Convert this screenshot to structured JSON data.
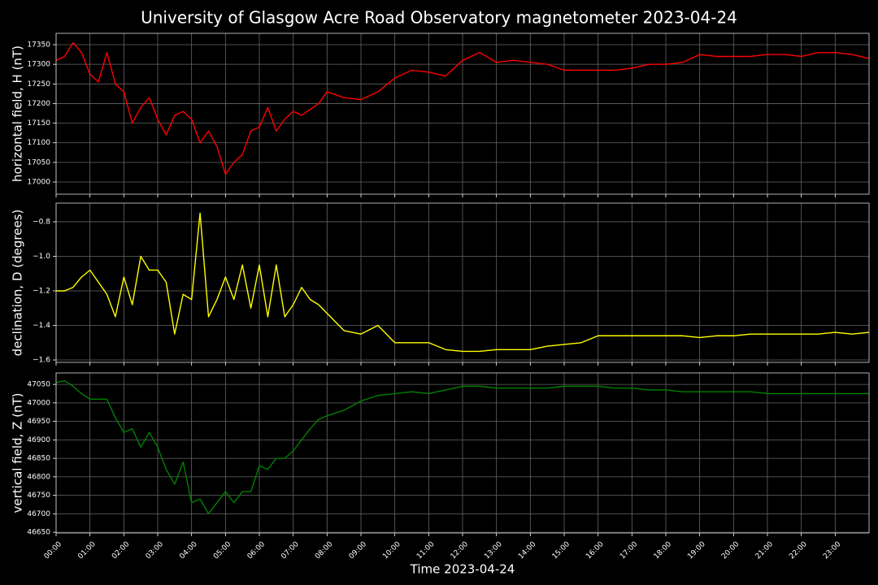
{
  "chart_data": [
    {
      "type": "line",
      "title": "University of Glasgow Acre Road Observatory magnetometer 2023-04-24",
      "ylabel": "horizontal field, H (nT)",
      "x": [
        0,
        0.25,
        0.5,
        0.75,
        1,
        1.25,
        1.5,
        1.75,
        2,
        2.25,
        2.5,
        2.75,
        3,
        3.25,
        3.5,
        3.75,
        4,
        4.25,
        4.5,
        4.75,
        5,
        5.25,
        5.5,
        5.75,
        6,
        6.25,
        6.5,
        6.75,
        7,
        7.25,
        7.5,
        7.75,
        8,
        8.5,
        9,
        9.5,
        10,
        10.5,
        11,
        11.5,
        12,
        12.5,
        13,
        13.5,
        14,
        14.5,
        15,
        15.5,
        16,
        16.5,
        17,
        17.5,
        18,
        18.5,
        19,
        19.5,
        20,
        20.5,
        21,
        21.5,
        22,
        22.5,
        23,
        23.5,
        24
      ],
      "values": [
        17310,
        17320,
        17355,
        17330,
        17275,
        17255,
        17330,
        17250,
        17230,
        17150,
        17190,
        17215,
        17160,
        17120,
        17170,
        17180,
        17160,
        17100,
        17130,
        17090,
        17020,
        17050,
        17070,
        17130,
        17140,
        17190,
        17130,
        17160,
        17180,
        17170,
        17185,
        17200,
        17230,
        17215,
        17210,
        17230,
        17265,
        17285,
        17280,
        17270,
        17310,
        17330,
        17305,
        17310,
        17305,
        17300,
        17285,
        17285,
        17285,
        17285,
        17290,
        17300,
        17300,
        17305,
        17325,
        17320,
        17320,
        17320,
        17325,
        17325,
        17320,
        17330,
        17330,
        17325,
        17315
      ],
      "color": "#ff0000",
      "xlim": [
        0,
        24
      ],
      "xticks": [
        0,
        1,
        2,
        3,
        4,
        5,
        6,
        7,
        8,
        9,
        10,
        11,
        12,
        13,
        14,
        15,
        16,
        17,
        18,
        19,
        20,
        21,
        22,
        23
      ],
      "ylim": [
        16969,
        17379
      ],
      "yticks": [
        17000,
        17050,
        17100,
        17150,
        17200,
        17250,
        17300,
        17350
      ],
      "grid": true
    },
    {
      "type": "line",
      "ylabel": "declination, D (degrees)",
      "x": [
        0,
        0.25,
        0.5,
        0.75,
        1,
        1.25,
        1.5,
        1.75,
        2,
        2.25,
        2.5,
        2.75,
        3,
        3.25,
        3.5,
        3.75,
        4,
        4.25,
        4.5,
        4.75,
        5,
        5.25,
        5.5,
        5.75,
        6,
        6.25,
        6.5,
        6.75,
        7,
        7.25,
        7.5,
        7.75,
        8,
        8.5,
        9,
        9.5,
        10,
        10.5,
        11,
        11.5,
        12,
        12.5,
        13,
        13.5,
        14,
        14.5,
        15,
        15.5,
        16,
        16.5,
        17,
        17.5,
        18,
        18.5,
        19,
        19.5,
        20,
        20.5,
        21,
        21.5,
        22,
        22.5,
        23,
        23.5,
        24
      ],
      "values": [
        -1.2,
        -1.2,
        -1.18,
        -1.12,
        -1.08,
        -1.15,
        -1.22,
        -1.35,
        -1.12,
        -1.28,
        -1.0,
        -1.08,
        -1.08,
        -1.15,
        -1.45,
        -1.22,
        -1.25,
        -0.75,
        -1.35,
        -1.25,
        -1.12,
        -1.25,
        -1.05,
        -1.3,
        -1.05,
        -1.35,
        -1.05,
        -1.35,
        -1.28,
        -1.18,
        -1.25,
        -1.28,
        -1.33,
        -1.43,
        -1.45,
        -1.4,
        -1.5,
        -1.5,
        -1.5,
        -1.54,
        -1.55,
        -1.55,
        -1.54,
        -1.54,
        -1.54,
        -1.52,
        -1.51,
        -1.5,
        -1.46,
        -1.46,
        -1.46,
        -1.46,
        -1.46,
        -1.46,
        -1.47,
        -1.46,
        -1.46,
        -1.45,
        -1.45,
        -1.45,
        -1.45,
        -1.45,
        -1.44,
        -1.45,
        -1.44
      ],
      "color": "#ffff00",
      "xlim": [
        0,
        24
      ],
      "xticks": [
        0,
        1,
        2,
        3,
        4,
        5,
        6,
        7,
        8,
        9,
        10,
        11,
        12,
        13,
        14,
        15,
        16,
        17,
        18,
        19,
        20,
        21,
        22,
        23
      ],
      "ylim": [
        -1.614,
        -0.692
      ],
      "yticks": [
        {
          "value": -1.6,
          "label": "−1.6"
        },
        {
          "value": -1.4,
          "label": "−1.4"
        },
        {
          "value": -1.2,
          "label": "−1.2"
        },
        {
          "value": -1.0,
          "label": "−1.0"
        },
        {
          "value": -0.8,
          "label": "−0.8"
        }
      ],
      "grid": true
    },
    {
      "type": "line",
      "ylabel": "vertical field, Z (nT)",
      "xlabel": "Time 2023-04-24",
      "x": [
        0,
        0.25,
        0.5,
        0.75,
        1,
        1.25,
        1.5,
        1.75,
        2,
        2.25,
        2.5,
        2.75,
        3,
        3.25,
        3.5,
        3.75,
        4,
        4.25,
        4.5,
        4.75,
        5,
        5.25,
        5.5,
        5.75,
        6,
        6.25,
        6.5,
        6.75,
        7,
        7.25,
        7.5,
        7.75,
        8,
        8.5,
        9,
        9.5,
        10,
        10.5,
        11,
        11.5,
        12,
        12.5,
        13,
        13.5,
        14,
        14.5,
        15,
        15.5,
        16,
        16.5,
        17,
        17.5,
        18,
        18.5,
        19,
        19.5,
        20,
        20.5,
        21,
        21.5,
        22,
        22.5,
        23,
        23.5,
        24
      ],
      "values": [
        47055,
        47060,
        47045,
        47025,
        47010,
        47010,
        47010,
        46960,
        46920,
        46930,
        46880,
        46920,
        46880,
        46820,
        46780,
        46840,
        46730,
        46740,
        46700,
        46730,
        46760,
        46730,
        46760,
        46760,
        46830,
        46820,
        46850,
        46850,
        46870,
        46900,
        46930,
        46955,
        46965,
        46980,
        47005,
        47020,
        47025,
        47030,
        47025,
        47035,
        47045,
        47045,
        47040,
        47040,
        47040,
        47040,
        47045,
        47045,
        47045,
        47040,
        47040,
        47035,
        47035,
        47030,
        47030,
        47030,
        47030,
        47030,
        47025,
        47025,
        47025,
        47025,
        47025,
        47025,
        47025
      ],
      "color": "#008000",
      "xlim": [
        0,
        24
      ],
      "xticks": [
        {
          "value": 0,
          "label": "00:00"
        },
        {
          "value": 1,
          "label": "01:00"
        },
        {
          "value": 2,
          "label": "02:00"
        },
        {
          "value": 3,
          "label": "03:00"
        },
        {
          "value": 4,
          "label": "04:00"
        },
        {
          "value": 5,
          "label": "05:00"
        },
        {
          "value": 6,
          "label": "06:00"
        },
        {
          "value": 7,
          "label": "07:00"
        },
        {
          "value": 8,
          "label": "08:00"
        },
        {
          "value": 9,
          "label": "09:00"
        },
        {
          "value": 10,
          "label": "10:00"
        },
        {
          "value": 11,
          "label": "11:00"
        },
        {
          "value": 12,
          "label": "12:00"
        },
        {
          "value": 13,
          "label": "13:00"
        },
        {
          "value": 14,
          "label": "14:00"
        },
        {
          "value": 15,
          "label": "15:00"
        },
        {
          "value": 16,
          "label": "16:00"
        },
        {
          "value": 17,
          "label": "17:00"
        },
        {
          "value": 18,
          "label": "18:00"
        },
        {
          "value": 19,
          "label": "19:00"
        },
        {
          "value": 20,
          "label": "20:00"
        },
        {
          "value": 21,
          "label": "21:00"
        },
        {
          "value": 22,
          "label": "22:00"
        },
        {
          "value": 23,
          "label": "23:00"
        }
      ],
      "ylim": [
        46648,
        47081
      ],
      "yticks": [
        46650,
        46700,
        46750,
        46800,
        46850,
        46900,
        46950,
        47000,
        47050
      ],
      "grid": true
    }
  ]
}
